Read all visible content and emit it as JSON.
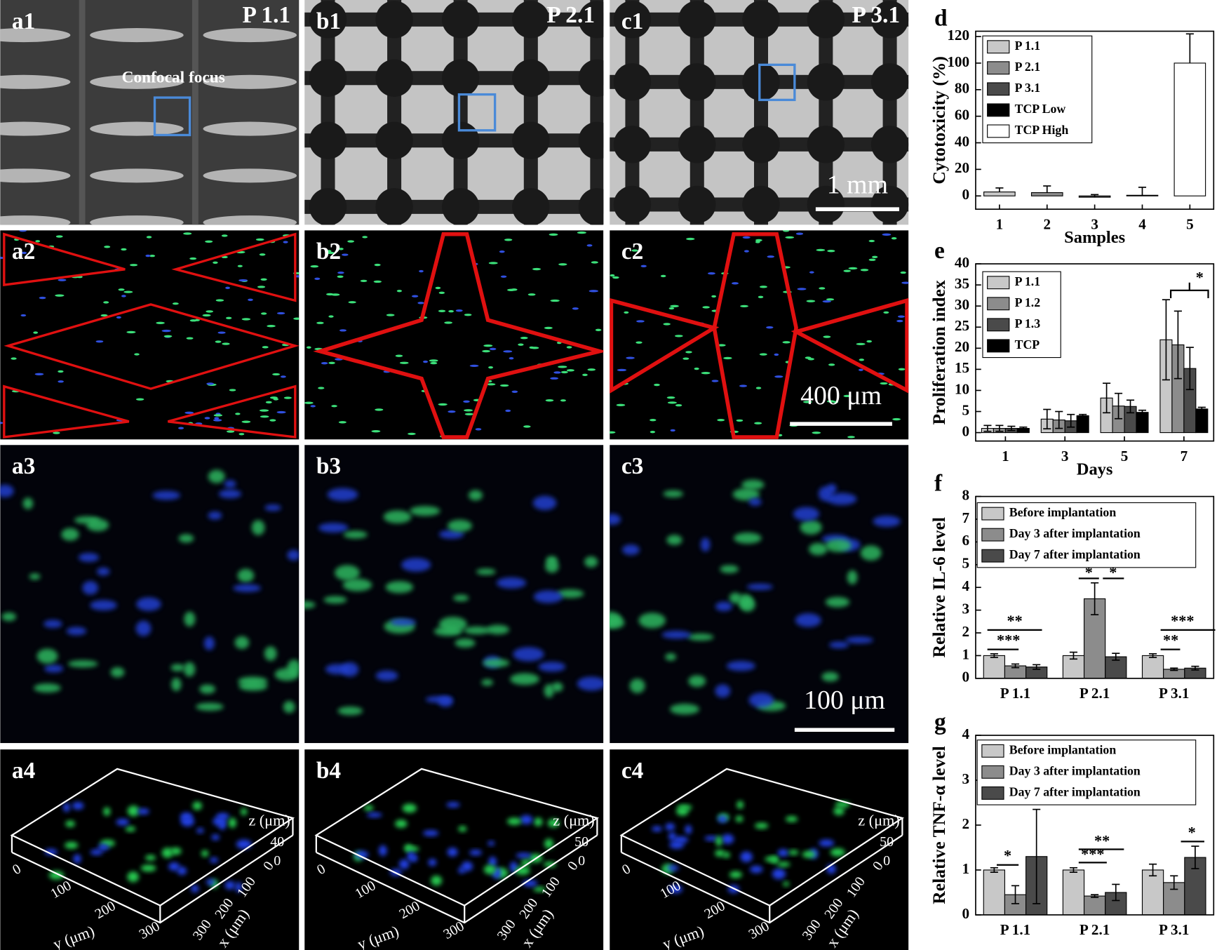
{
  "image_panels": [
    {
      "label": "a1",
      "title": "P 1.1",
      "annotation": "Confocal focus"
    },
    {
      "label": "b1",
      "title": "P 2.1"
    },
    {
      "label": "c1",
      "title": "P 3.1",
      "scale_bar": "1 mm"
    },
    {
      "label": "a2"
    },
    {
      "label": "b2"
    },
    {
      "label": "c2",
      "scale_bar": "400 μm"
    },
    {
      "label": "a3"
    },
    {
      "label": "b3"
    },
    {
      "label": "c3",
      "scale_bar": "100 μm"
    },
    {
      "label": "a4",
      "z_label": "z (μm)",
      "z_ticks": [
        40,
        0
      ],
      "x_label": "x (μm)",
      "x_ticks": [
        0,
        100,
        200,
        300
      ],
      "y_label": "y (μm)",
      "y_ticks": [
        0,
        100,
        200,
        300
      ]
    },
    {
      "label": "b4",
      "z_label": "z (μm)",
      "z_ticks": [
        50,
        0
      ],
      "x_label": "x (μm)",
      "x_ticks": [
        0,
        100,
        200,
        300
      ],
      "y_label": "y (μm)",
      "y_ticks": [
        0,
        100,
        200,
        300
      ]
    },
    {
      "label": "c4",
      "z_label": "z (μm)",
      "z_ticks": [
        50,
        0
      ],
      "x_label": "x (μm)",
      "x_ticks": [
        0,
        100,
        200,
        300
      ],
      "y_label": "y (μm)",
      "y_ticks": [
        0,
        100,
        200,
        300
      ]
    }
  ],
  "chart_data": [
    {
      "type": "bar",
      "label": "d",
      "xlabel": "Samples",
      "ylabel": "Cytotoxicity (%)",
      "categories": [
        "1",
        "2",
        "3",
        "4",
        "5"
      ],
      "ylim": [
        -10,
        124
      ],
      "yticks": [
        0,
        20,
        40,
        60,
        80,
        100,
        120
      ],
      "legend": "upper left",
      "error_bars": "upper",
      "series": [
        {
          "name": "P 1.1",
          "color": "#c8c8c8",
          "values": [
            3,
            null,
            null,
            null,
            null
          ],
          "errors": [
            3,
            null,
            null,
            null,
            null
          ]
        },
        {
          "name": "P 2.1",
          "color": "#8c8c8c",
          "values": [
            null,
            2.5,
            null,
            null,
            null
          ],
          "errors": [
            null,
            5,
            null,
            null,
            null
          ]
        },
        {
          "name": "P 3.1",
          "color": "#4a4a4a",
          "values": [
            null,
            null,
            -1,
            null,
            null
          ],
          "errors": [
            null,
            null,
            2,
            null,
            null
          ]
        },
        {
          "name": "TCP Low",
          "color": "#000000",
          "values": [
            null,
            null,
            null,
            0.5,
            null
          ],
          "errors": [
            null,
            null,
            null,
            6,
            null
          ]
        },
        {
          "name": "TCP High",
          "color": "#ffffff",
          "values": [
            null,
            null,
            null,
            null,
            100
          ],
          "errors": [
            null,
            null,
            null,
            null,
            22
          ]
        }
      ]
    },
    {
      "type": "bar",
      "label": "e",
      "xlabel": "Days",
      "ylabel": "Proliferation index",
      "categories": [
        "1",
        "3",
        "5",
        "7"
      ],
      "ylim": [
        -2,
        40
      ],
      "yticks": [
        0,
        5,
        10,
        15,
        20,
        25,
        30,
        35,
        40
      ],
      "legend": "upper left",
      "error_bars": "both",
      "annotations": [
        "*"
      ],
      "series": [
        {
          "name": "P 1.1",
          "color": "#c8c8c8",
          "values": [
            1,
            3.2,
            8.2,
            22
          ],
          "errors": [
            0.7,
            2.3,
            3.5,
            9.5
          ]
        },
        {
          "name": "P 1.2",
          "color": "#8c8c8c",
          "values": [
            1,
            3,
            6.3,
            20.8
          ],
          "errors": [
            0.7,
            2,
            3,
            8
          ]
        },
        {
          "name": "P 1.3",
          "color": "#4a4a4a",
          "values": [
            1,
            2.8,
            6.2,
            15.2
          ],
          "errors": [
            0.5,
            1.5,
            1.5,
            5
          ]
        },
        {
          "name": "TCP",
          "color": "#000000",
          "values": [
            1,
            4,
            4.8,
            5.6
          ],
          "errors": [
            0.3,
            0.3,
            0.5,
            0.4
          ]
        }
      ]
    },
    {
      "type": "bar",
      "label": "f",
      "ylabel": "Relative IL-6 level",
      "categories": [
        "P 1.1",
        "P 2.1",
        "P 3.1"
      ],
      "ylim": [
        0,
        8
      ],
      "yticks": [
        0,
        1,
        2,
        3,
        4,
        5,
        6,
        7,
        8
      ],
      "legend": "upper left",
      "error_bars": "both",
      "annotations": [
        "**",
        "***",
        "*",
        "*",
        "***",
        "**"
      ],
      "series": [
        {
          "name": "Before implantation",
          "color": "#c8c8c8",
          "values": [
            1,
            1,
            1
          ],
          "errors": [
            0.08,
            0.15,
            0.08
          ]
        },
        {
          "name": "Day 3 after implantation",
          "color": "#8c8c8c",
          "values": [
            0.55,
            3.5,
            0.4
          ],
          "errors": [
            0.08,
            0.7,
            0.05
          ]
        },
        {
          "name": "Day 7 after implantation",
          "color": "#4a4a4a",
          "values": [
            0.5,
            0.95,
            0.45
          ],
          "errors": [
            0.1,
            0.15,
            0.08
          ]
        }
      ]
    },
    {
      "type": "bar",
      "label": "g",
      "ylabel": "Relative TNF-α level",
      "categories": [
        "P 1.1",
        "P 2.1",
        "P 3.1"
      ],
      "ylim": [
        0,
        4
      ],
      "yticks": [
        0,
        1,
        2,
        3,
        4
      ],
      "legend": "upper left",
      "error_bars": "both",
      "annotations": [
        "*",
        "**",
        "***",
        "*"
      ],
      "series": [
        {
          "name": "Before implantation",
          "color": "#c8c8c8",
          "values": [
            1,
            1,
            1
          ],
          "errors": [
            0.05,
            0.05,
            0.13
          ]
        },
        {
          "name": "Day 3 after implantation",
          "color": "#8c8c8c",
          "values": [
            0.45,
            0.42,
            0.72
          ],
          "errors": [
            0.2,
            0.03,
            0.15
          ]
        },
        {
          "name": "Day 7 after implantation",
          "color": "#4a4a4a",
          "values": [
            1.3,
            0.5,
            1.28
          ],
          "errors": [
            1.05,
            0.18,
            0.25
          ]
        }
      ]
    }
  ]
}
